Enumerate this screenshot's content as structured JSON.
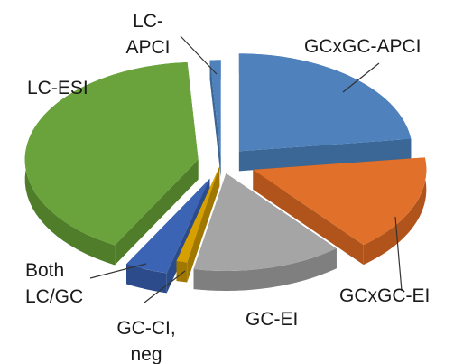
{
  "chart_data": {
    "type": "pie",
    "style": "3d-exploded",
    "categories": [
      "GCxGC-APCI",
      "GCxGC-EI",
      "GC-EI",
      "GC-CI, neg",
      "Both LC/GC",
      "LC-ESI",
      "LC-APCI"
    ],
    "values": [
      23,
      16,
      14,
      1,
      4,
      41,
      1
    ],
    "label_lines": [
      [
        "GCxGC-APCI"
      ],
      [
        "GCxGC-EI"
      ],
      [
        "GC-EI"
      ],
      [
        "GC-CI,",
        "neg"
      ],
      [
        "Both",
        "LC/GC"
      ],
      [
        "LC-ESI"
      ],
      [
        "LC-",
        "APCI"
      ]
    ],
    "colors": [
      "#4f81bd",
      "#e0702a",
      "#a5a5a5",
      "#d6a000",
      "#3b64b4",
      "#6aa33c",
      "#4f81bd"
    ],
    "side_colors": [
      "#3a6796",
      "#b0541b",
      "#7f7f7f",
      "#a07800",
      "#2b4b8a",
      "#4f7d2a",
      "#3a6796"
    ],
    "legend": "none",
    "title": ""
  }
}
